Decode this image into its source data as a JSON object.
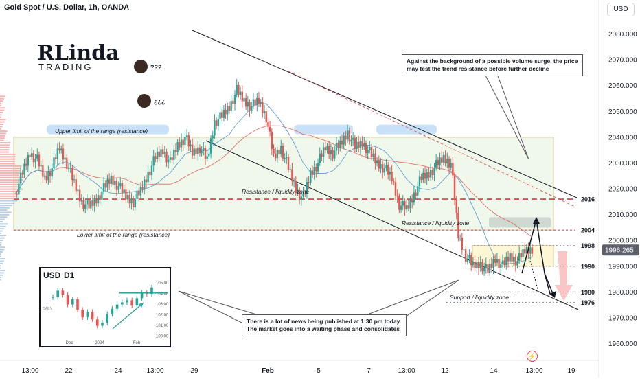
{
  "header": {
    "title": "Gold Spot / U.S. Dollar, 1h, OANDA",
    "currency": "USD"
  },
  "logo": {
    "main": "RLinda",
    "sub": "TRADING"
  },
  "emoji_labels": [
    "???",
    "¿¿¿"
  ],
  "notes": {
    "top": "Against the background of a possible volume surge, the price may test the trend resistance before further decline",
    "bottom": "There is a lot of news being published at 1:30 pm today. The market goes into a waiting phase and consolidates"
  },
  "inset": {
    "symbol": "USD",
    "tf": "D1",
    "ticks": [
      "105.00",
      "104.00",
      "103.00",
      "102.00",
      "101.00",
      "100.00"
    ],
    "xticks": [
      "Dec",
      "2024",
      "Feb"
    ],
    "side_label": "DAILY"
  },
  "colors": {
    "up": "#26a69a",
    "down": "#ef5350",
    "level": "#e5323e",
    "range_fill": "#e3f2da",
    "range_border": "#d9c896",
    "price_tag": "#5d606b",
    "ma_red": "#e05a5a",
    "ma_blue": "#4a90c9"
  },
  "chart_data": {
    "type": "candlestick",
    "title": "Gold Spot / U.S. Dollar, 1h, OANDA",
    "ylim": [
      1955,
      2088
    ],
    "y_ticks": [
      1960,
      1970,
      1980,
      1990,
      2000,
      2010,
      2020,
      2030,
      2040,
      2050,
      2060,
      2070,
      2080
    ],
    "y_tick_labels": [
      "1960.000",
      "1970.000",
      "1980.000",
      "1990.000",
      "2000.000",
      "2010.000",
      "2020.000",
      "2030.000",
      "2040.000",
      "2050.000",
      "2060.000",
      "2070.000",
      "2080.000"
    ],
    "x_tick_labels": [
      "13:00",
      "22",
      "24",
      "13:00",
      "29",
      "Feb",
      "5",
      "7",
      "13:00",
      "12",
      "14",
      "13:00",
      "19"
    ],
    "current_price": "1996.265",
    "levels": [
      {
        "value": 2016,
        "label": "2016",
        "style": "dashed-red"
      },
      {
        "value": 2004,
        "label": "2004",
        "style": "dotted-red"
      },
      {
        "value": 1998,
        "label": "1998",
        "style": "dotted"
      },
      {
        "value": 1990,
        "label": "1990",
        "style": "dotted"
      },
      {
        "value": 1980,
        "label": "1980",
        "style": "dotted"
      },
      {
        "value": 1976,
        "label": "1976",
        "style": "dotted"
      }
    ],
    "zones": [
      {
        "label": "Upper limit of the range (resistance)",
        "kind": "highlight"
      },
      {
        "label": "Resistance / liquidity zone",
        "kind": "text"
      },
      {
        "label": "Lower limit of the range (resistance)",
        "kind": "text"
      },
      {
        "label": "Resistance / liquidity zone",
        "kind": "text"
      },
      {
        "label": "Support / liquidity zone",
        "kind": "text"
      }
    ],
    "price_path": [
      2018,
      2026,
      2034,
      2031,
      2024,
      2028,
      2036,
      2030,
      2022,
      2015,
      2013,
      2016,
      2020,
      2024,
      2021,
      2017,
      2015,
      2019,
      2026,
      2032,
      2035,
      2030,
      2037,
      2040,
      2034,
      2036,
      2031,
      2046,
      2048,
      2052,
      2058,
      2054,
      2052,
      2054,
      2048,
      2032,
      2036,
      2028,
      2020,
      2016,
      2026,
      2030,
      2036,
      2034,
      2037,
      2042,
      2036,
      2038,
      2034,
      2030,
      2028,
      2024,
      2014,
      2012,
      2018,
      2024,
      2026,
      2029,
      2032,
      2030,
      2002,
      1994,
      1990,
      1991,
      1988,
      1993,
      1990,
      1994,
      1992,
      1996,
      1997
    ]
  }
}
